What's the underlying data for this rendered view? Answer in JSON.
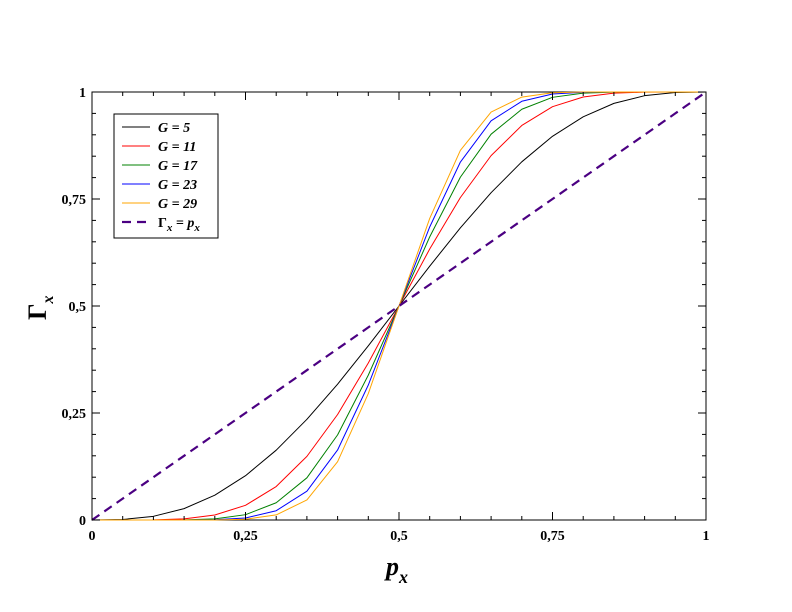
{
  "chart_data": {
    "type": "line",
    "xlabel": "p",
    "xlabel_sub": "x",
    "ylabel": "Γ",
    "ylabel_sub": "x",
    "xlim": [
      0,
      1
    ],
    "ylim": [
      0,
      1
    ],
    "x_ticks": [
      0,
      0.25,
      0.5,
      0.75,
      1
    ],
    "x_tick_labels": [
      "0",
      "0,25",
      "0,5",
      "0,75",
      "1"
    ],
    "y_ticks": [
      0,
      0.25,
      0.5,
      0.75,
      1
    ],
    "y_tick_labels": [
      "0",
      "0,25",
      "0,5",
      "0,75",
      "1"
    ],
    "legend_position": "top-left",
    "x": [
      0,
      0.05,
      0.1,
      0.15,
      0.2,
      0.25,
      0.3,
      0.35,
      0.4,
      0.45,
      0.5,
      0.55,
      0.6,
      0.65,
      0.7,
      0.75,
      0.8,
      0.85,
      0.9,
      0.95,
      1
    ],
    "series": [
      {
        "name": "G = 5",
        "color": "#000000",
        "values": [
          0,
          0.0012,
          0.0086,
          0.0266,
          0.0579,
          0.1035,
          0.1631,
          0.2352,
          0.3174,
          0.4069,
          0.5,
          0.5931,
          0.6826,
          0.7648,
          0.8369,
          0.8965,
          0.9421,
          0.9734,
          0.9914,
          0.9988,
          1
        ]
      },
      {
        "name": "G = 11",
        "color": "#ff0000",
        "values": [
          0,
          0,
          0.0003,
          0.0027,
          0.0117,
          0.0343,
          0.0782,
          0.1487,
          0.2465,
          0.3669,
          0.5,
          0.6331,
          0.7535,
          0.8513,
          0.9218,
          0.9657,
          0.9883,
          0.9973,
          0.9997,
          1,
          1
        ]
      },
      {
        "name": "G = 17",
        "color": "#008000",
        "values": [
          0,
          0,
          0,
          0.0003,
          0.0026,
          0.0124,
          0.0403,
          0.0986,
          0.1989,
          0.3385,
          0.5,
          0.6615,
          0.8011,
          0.9014,
          0.9597,
          0.9876,
          0.9974,
          0.9997,
          1,
          1,
          1
        ]
      },
      {
        "name": "G = 23",
        "color": "#0000ff",
        "values": [
          0,
          0,
          0,
          0,
          0.0006,
          0.0047,
          0.0217,
          0.0674,
          0.1636,
          0.3154,
          0.5,
          0.6846,
          0.8364,
          0.9326,
          0.9783,
          0.9953,
          0.9994,
          1,
          1,
          1,
          1
        ]
      },
      {
        "name": "G = 29",
        "color": "#ffa500",
        "values": [
          0,
          0,
          0,
          0,
          0.0001,
          0.0018,
          0.0119,
          0.0468,
          0.1362,
          0.2955,
          0.5,
          0.7045,
          0.8638,
          0.9532,
          0.9881,
          0.9982,
          0.9999,
          1,
          1,
          1,
          1
        ]
      },
      {
        "name": "Γ",
        "name_sub": "x",
        "name_rest": " = p",
        "name_rest_sub": "x",
        "color": "#4b0082",
        "dashed": true,
        "values": [
          0,
          0.05,
          0.1,
          0.15,
          0.2,
          0.25,
          0.3,
          0.35,
          0.4,
          0.45,
          0.5,
          0.55,
          0.6,
          0.65,
          0.7,
          0.75,
          0.8,
          0.85,
          0.9,
          0.95,
          1
        ]
      }
    ]
  }
}
